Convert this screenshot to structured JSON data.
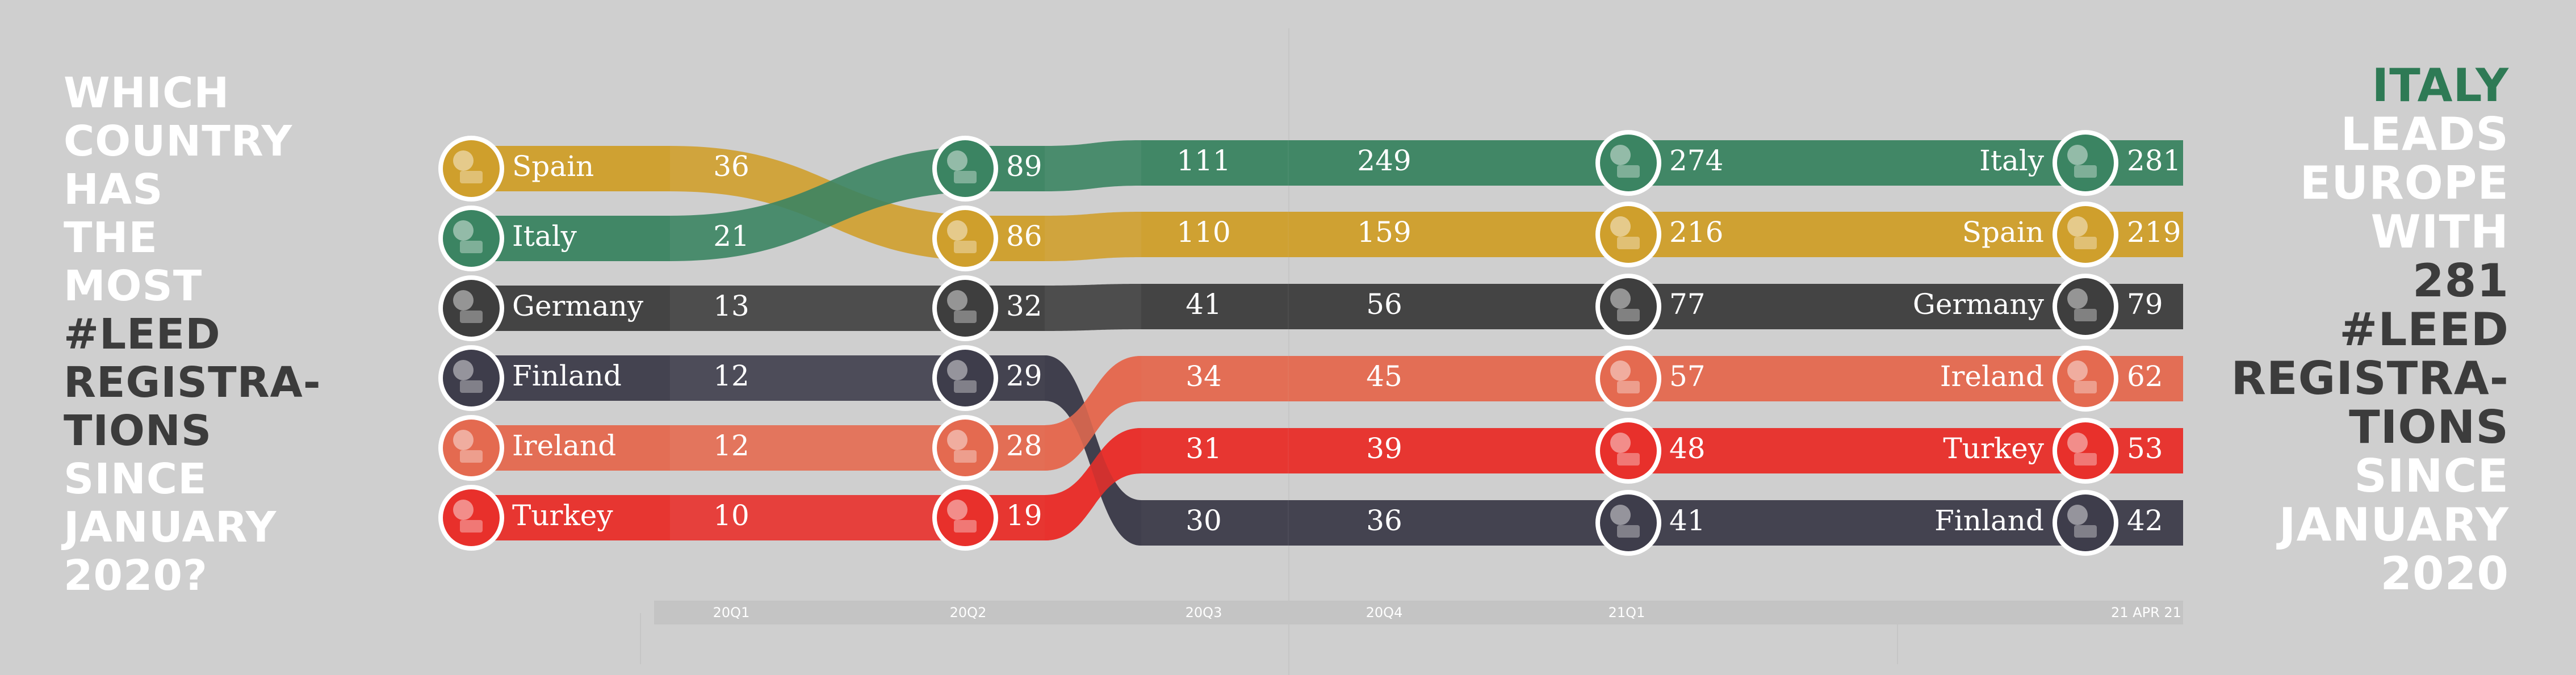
{
  "left_title": [
    {
      "text": "WHICH",
      "tone": "w"
    },
    {
      "text": "COUNTRY",
      "tone": "w"
    },
    {
      "text": "HAS",
      "tone": "w"
    },
    {
      "text": "THE",
      "tone": "w"
    },
    {
      "text": "MOST",
      "tone": "w"
    },
    {
      "text": "#LEED",
      "tone": "d"
    },
    {
      "text": "REGISTRA-",
      "tone": "d"
    },
    {
      "text": "TIONS",
      "tone": "d"
    },
    {
      "text": "SINCE",
      "tone": "w"
    },
    {
      "text": "JANUARY",
      "tone": "w"
    },
    {
      "text": "2020?",
      "tone": "w"
    }
  ],
  "right_title": [
    {
      "text": "ITALY",
      "tone": "g"
    },
    {
      "text": "LEADS",
      "tone": "w"
    },
    {
      "text": "EUROPE",
      "tone": "w"
    },
    {
      "text": "WITH",
      "tone": "w"
    },
    {
      "text": "281",
      "tone": "d"
    },
    {
      "text": "#LEED",
      "tone": "d"
    },
    {
      "text": "REGISTRA-",
      "tone": "d"
    },
    {
      "text": "TIONS",
      "tone": "d"
    },
    {
      "text": "SINCE",
      "tone": "w"
    },
    {
      "text": "JANUARY",
      "tone": "w"
    },
    {
      "text": "2020",
      "tone": "w"
    }
  ],
  "chart_data": {
    "type": "bump",
    "periods": [
      "20Q1",
      "20Q2",
      "20Q3",
      "20Q4",
      "21Q1",
      "21 APR 21"
    ],
    "series": [
      {
        "name": "Spain",
        "color": "#cf9f2c",
        "values": [
          36,
          86,
          110,
          159,
          216,
          219
        ],
        "ranks": [
          1,
          2,
          2,
          2,
          2,
          2
        ]
      },
      {
        "name": "Italy",
        "color": "#3b8462",
        "values": [
          21,
          89,
          111,
          249,
          274,
          281
        ],
        "ranks": [
          2,
          1,
          1,
          1,
          1,
          1
        ]
      },
      {
        "name": "Germany",
        "color": "#3e3e3e",
        "values": [
          13,
          32,
          41,
          56,
          77,
          79
        ],
        "ranks": [
          3,
          3,
          3,
          3,
          3,
          3
        ]
      },
      {
        "name": "Finland",
        "color": "#3e3d4b",
        "values": [
          12,
          29,
          30,
          36,
          41,
          42
        ],
        "ranks": [
          4,
          4,
          6,
          6,
          6,
          6
        ]
      },
      {
        "name": "Ireland",
        "color": "#e46a50",
        "values": [
          12,
          28,
          34,
          45,
          57,
          62
        ],
        "ranks": [
          5,
          5,
          4,
          4,
          4,
          4
        ]
      },
      {
        "name": "Turkey",
        "color": "#e8302b",
        "values": [
          10,
          19,
          31,
          39,
          48,
          53
        ],
        "ranks": [
          6,
          6,
          5,
          5,
          5,
          5
        ]
      }
    ],
    "flag_icons": {
      "Spain": "flag-spain-icon",
      "Italy": "flag-italy-icon",
      "Germany": "flag-germany-icon",
      "Finland": "flag-finland-icon",
      "Ireland": "flag-ireland-icon",
      "Turkey": "flag-turkey-icon"
    },
    "label_color": "#ffffff",
    "axis_color": "#c4c4c4"
  }
}
